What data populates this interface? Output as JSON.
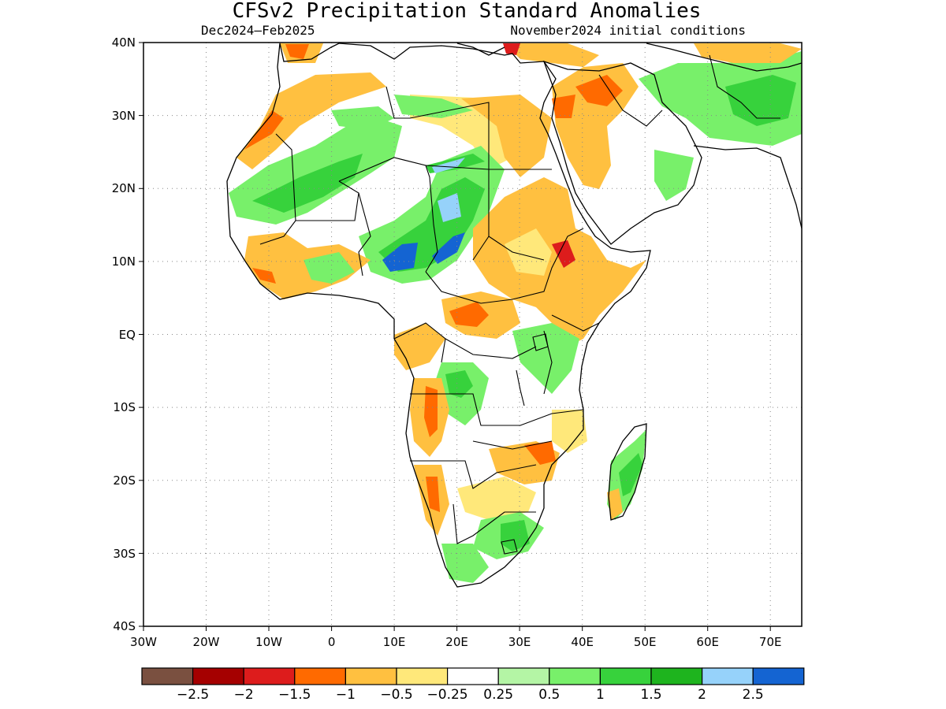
{
  "map": {
    "title": "CFSv2 Precipitation Standard Anomalies",
    "period": "Dec2024–Feb2025",
    "init": "November2024 initial conditions",
    "lat_labels": [
      "40N",
      "30N",
      "20N",
      "10N",
      "EQ",
      "10S",
      "20S",
      "30S",
      "40S"
    ],
    "lon_labels": [
      "30W",
      "20W",
      "10W",
      "0",
      "10E",
      "20E",
      "30E",
      "40E",
      "50E",
      "60E",
      "70E"
    ],
    "extent": {
      "lon_min": -30,
      "lon_max": 75,
      "lat_min": -40,
      "lat_max": 40
    },
    "grid": "dotted",
    "colorbar": {
      "colors": [
        "#7a5040",
        "#a50000",
        "#dd1c1c",
        "#ff6a00",
        "#ffc040",
        "#ffe87a",
        "#ffffff",
        "#b4f5a5",
        "#78f06a",
        "#37d23c",
        "#1eb41e",
        "#96d2fa",
        "#1464d2"
      ],
      "labels": [
        "−2.5",
        "−2",
        "−1.5",
        "−1",
        "−0.5",
        "−0.25",
        "0.25",
        "0.5",
        "1",
        "1.5",
        "2",
        "2.5"
      ]
    }
  }
}
